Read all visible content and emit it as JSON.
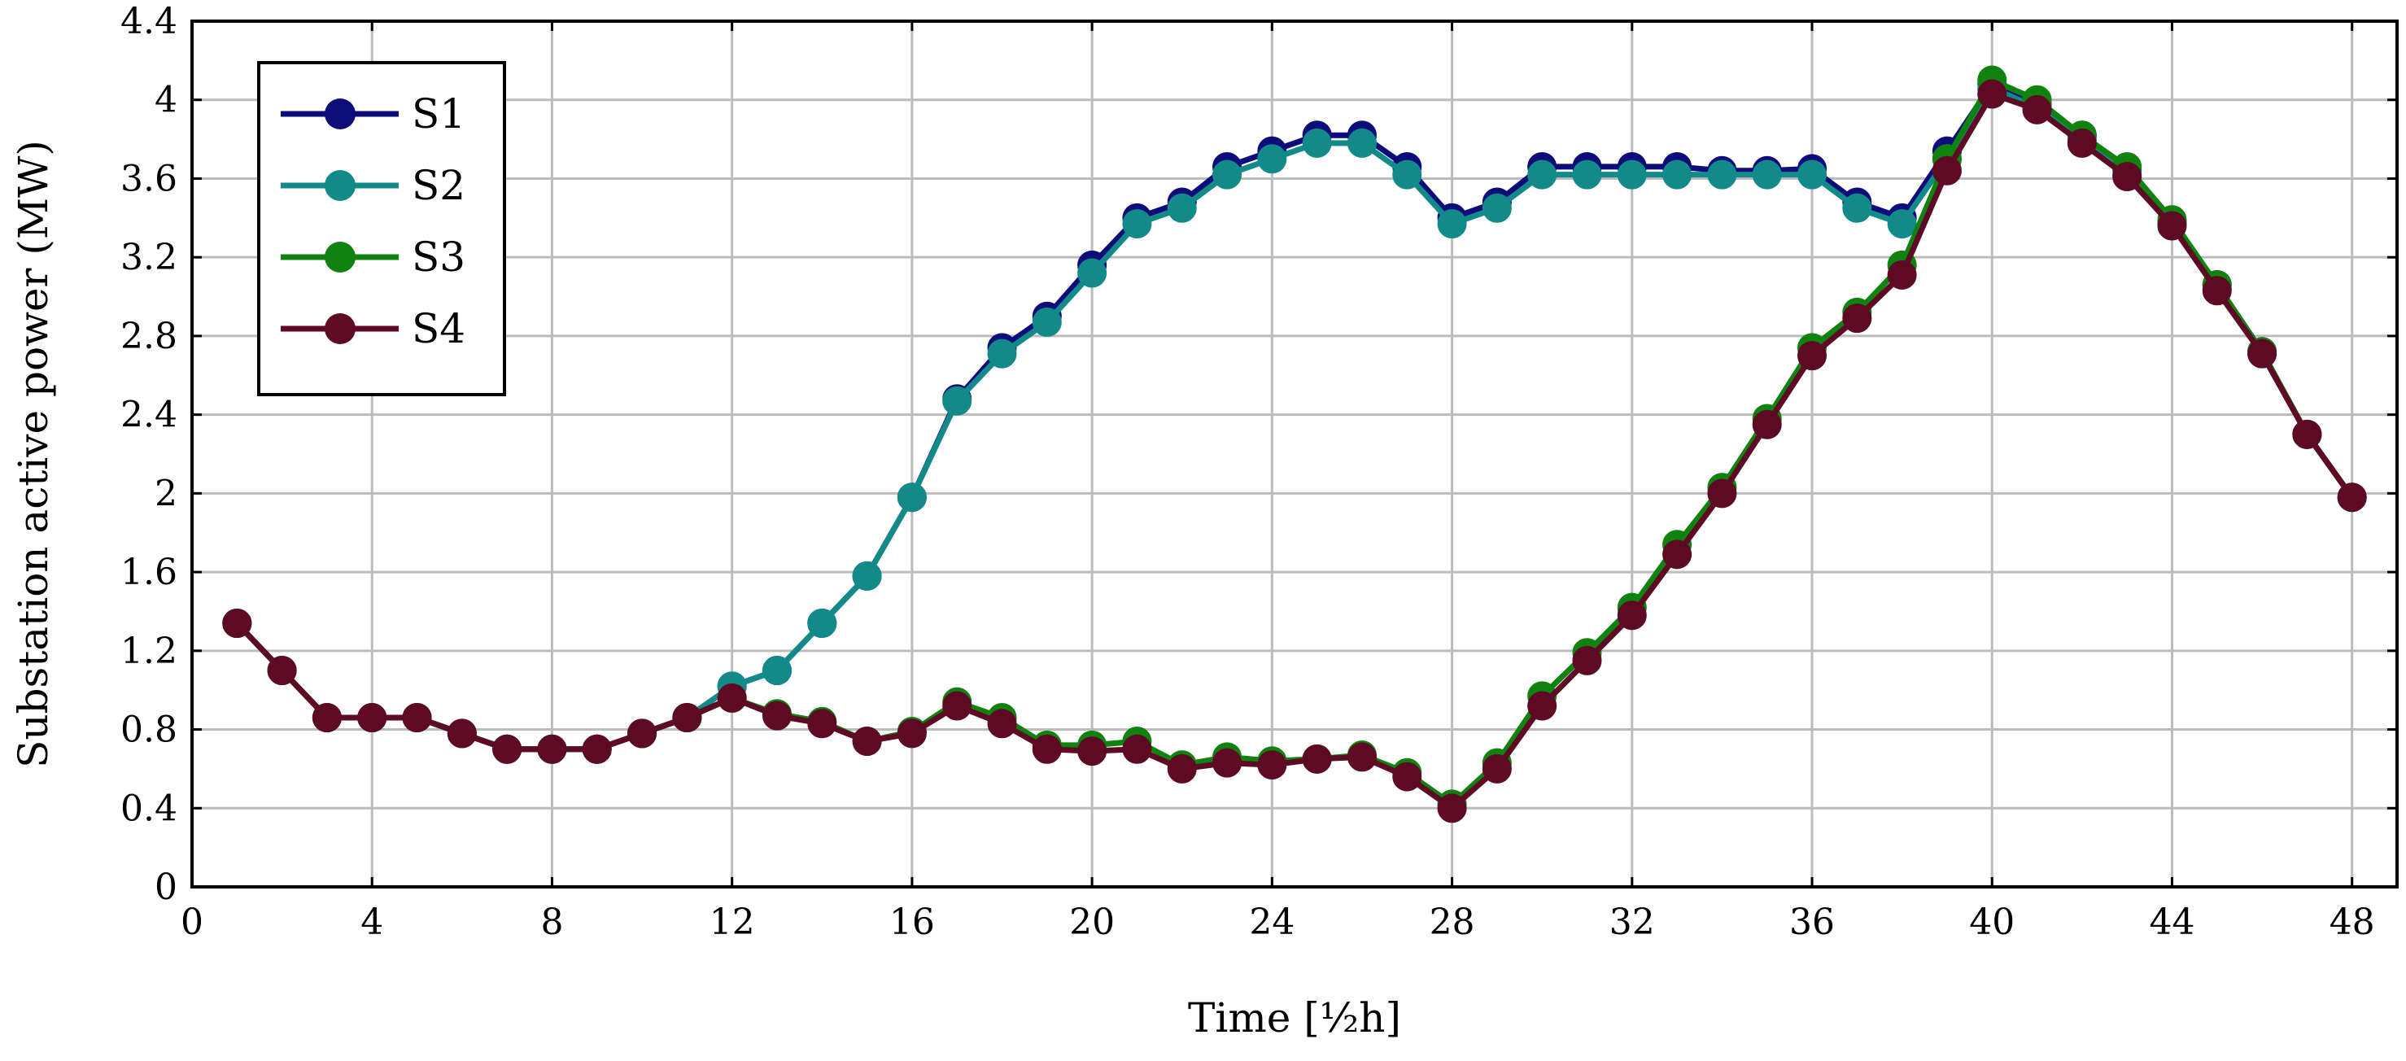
{
  "chart_data": {
    "type": "line",
    "xlabel": "Time [½h]",
    "ylabel": "Substation active power (MW)",
    "xlim": [
      0,
      49
    ],
    "ylim": [
      0,
      4.4
    ],
    "xticks": [
      0,
      4,
      8,
      12,
      16,
      20,
      24,
      28,
      32,
      36,
      40,
      44,
      48
    ],
    "xtick_labels": [
      "0",
      "4",
      "8",
      "12",
      "16",
      "20",
      "24",
      "28",
      "32",
      "36",
      "40",
      "44",
      "48"
    ],
    "yticks": [
      0,
      0.4,
      0.8,
      1.2,
      1.6,
      2.0,
      2.4,
      2.8,
      3.2,
      3.6,
      4.0,
      4.4
    ],
    "ytick_labels": [
      "0",
      "0.4",
      "0.8",
      "1.2",
      "1.6",
      "2",
      "2.4",
      "2.8",
      "3.2",
      "3.6",
      "4",
      "4.4"
    ],
    "grid": true,
    "legend_position": "top-left",
    "x": [
      1,
      2,
      3,
      4,
      5,
      6,
      7,
      8,
      9,
      10,
      11,
      12,
      13,
      14,
      15,
      16,
      17,
      18,
      19,
      20,
      21,
      22,
      23,
      24,
      25,
      26,
      27,
      28,
      29,
      30,
      31,
      32,
      33,
      34,
      35,
      36,
      37,
      38,
      39,
      40,
      41,
      42,
      43,
      44,
      45,
      46,
      47,
      48
    ],
    "series": [
      {
        "name": "S1",
        "color": "#0c0c7a",
        "values": [
          1.34,
          1.1,
          0.86,
          0.86,
          0.86,
          0.78,
          0.7,
          0.7,
          0.7,
          0.78,
          0.86,
          1.02,
          1.1,
          1.34,
          1.58,
          1.98,
          2.48,
          2.74,
          2.9,
          3.16,
          3.4,
          3.48,
          3.66,
          3.74,
          3.82,
          3.82,
          3.66,
          3.4,
          3.48,
          3.66,
          3.66,
          3.66,
          3.66,
          3.64,
          3.64,
          3.65,
          3.48,
          3.4,
          3.74,
          4.08,
          3.98,
          3.82,
          3.64,
          3.38,
          3.06,
          2.72,
          2.3,
          1.98
        ]
      },
      {
        "name": "S2",
        "color": "#138a8a",
        "values": [
          1.34,
          1.1,
          0.86,
          0.86,
          0.86,
          0.78,
          0.7,
          0.7,
          0.7,
          0.78,
          0.86,
          1.02,
          1.1,
          1.34,
          1.58,
          1.98,
          2.47,
          2.71,
          2.87,
          3.12,
          3.37,
          3.45,
          3.62,
          3.7,
          3.78,
          3.78,
          3.62,
          3.37,
          3.45,
          3.62,
          3.62,
          3.62,
          3.62,
          3.62,
          3.62,
          3.62,
          3.45,
          3.37,
          3.7,
          4.06,
          3.96,
          3.8,
          3.62,
          3.37,
          3.04,
          2.71,
          2.3,
          1.98
        ]
      },
      {
        "name": "S3",
        "color": "#0f820f",
        "values": [
          1.34,
          1.1,
          0.86,
          0.86,
          0.86,
          0.78,
          0.7,
          0.7,
          0.7,
          0.78,
          0.86,
          0.96,
          0.88,
          0.84,
          0.74,
          0.79,
          0.94,
          0.86,
          0.72,
          0.72,
          0.74,
          0.62,
          0.66,
          0.64,
          0.65,
          0.67,
          0.58,
          0.42,
          0.63,
          0.97,
          1.19,
          1.42,
          1.74,
          2.03,
          2.38,
          2.74,
          2.92,
          3.16,
          3.7,
          4.1,
          4.0,
          3.82,
          3.66,
          3.39,
          3.06,
          2.72,
          2.3,
          1.98
        ]
      },
      {
        "name": "S4",
        "color": "#5e0a24",
        "values": [
          1.34,
          1.1,
          0.86,
          0.86,
          0.86,
          0.78,
          0.7,
          0.7,
          0.7,
          0.78,
          0.86,
          0.96,
          0.87,
          0.83,
          0.74,
          0.78,
          0.92,
          0.83,
          0.7,
          0.69,
          0.7,
          0.6,
          0.63,
          0.62,
          0.65,
          0.66,
          0.56,
          0.4,
          0.6,
          0.92,
          1.15,
          1.38,
          1.69,
          2.0,
          2.35,
          2.7,
          2.89,
          3.11,
          3.64,
          4.03,
          3.95,
          3.78,
          3.61,
          3.36,
          3.03,
          2.71,
          2.3,
          1.98
        ]
      }
    ]
  }
}
